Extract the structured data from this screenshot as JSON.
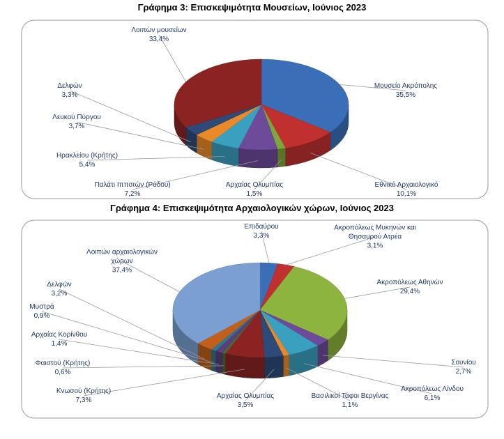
{
  "chart_data": [
    {
      "type": "pie",
      "title": "Γράφημα 3: Επισκεψιμότητα Μουσείων, Ιούνιος 2023",
      "categories": [
        "Μουσείο Ακρόπολης",
        "Εθνικό Αρχαιολογικό",
        "Αρχαίας Ολυμπίας",
        "Παλάτι Ιπποτών (Ρόδου)",
        "Ηρακλείου (Κρήτης)",
        "Λευκού Πύργου",
        "Δελφών",
        "Λοιπών μουσείων"
      ],
      "values": [
        35.5,
        10.1,
        1.5,
        7.2,
        5.4,
        3.7,
        3.3,
        33.4
      ],
      "value_labels": [
        "35,5%",
        "10,1%",
        "1,5%",
        "7,2%",
        "5,4%",
        "3,7%",
        "3,3%",
        "33,4%"
      ],
      "colors": [
        "#3a6fb8",
        "#c0302f",
        "#7fa63a",
        "#6e4a9a",
        "#3aa0c0",
        "#e88a2a",
        "#2e4a78",
        "#8b2323"
      ]
    },
    {
      "type": "pie",
      "title": "Γράφημα 4: Επισκεψιμότητα Αρχαιολογικών χώρων, Ιούνιος 2023",
      "categories": [
        "Επιδαύρου",
        "Ακροπόλεως Μυκηνών και Θησαυρού Ατρέα",
        "Ακροπόλεως Αθηνών",
        "Σουνίου",
        "Ακροπόλεως Λίνδου",
        "Βασιλικοί Τάφοι Βεργίνας",
        "Αρχαίας Ολυμπίας",
        "Κνωσού (Κρήτης)",
        "Φαιστού (Κρήτης)",
        "Αρχαίας Κορίνθου",
        "Μυστρά",
        "Δελφών",
        "Λοιπών αρχαιολογικών χώρων"
      ],
      "values": [
        3.3,
        3.1,
        29.4,
        2.7,
        6.1,
        1.1,
        3.5,
        7.3,
        0.6,
        1.4,
        0.9,
        3.2,
        37.4
      ],
      "value_labels": [
        "3,3%",
        "3,1%",
        "29,4%",
        "2,7%",
        "6,1%",
        "1,1%",
        "3,5%",
        "7,3%",
        "0,6%",
        "1,4%",
        "0,9%",
        "3,2%",
        "37,4%"
      ],
      "colors": [
        "#3a6fb8",
        "#c0302f",
        "#8db43e",
        "#6e4a9a",
        "#3aa0c0",
        "#e88a2a",
        "#2e4a78",
        "#8b2323",
        "#4e6a30",
        "#5a3f7a",
        "#2a7a90",
        "#c0601a",
        "#7a9fd0"
      ]
    }
  ]
}
